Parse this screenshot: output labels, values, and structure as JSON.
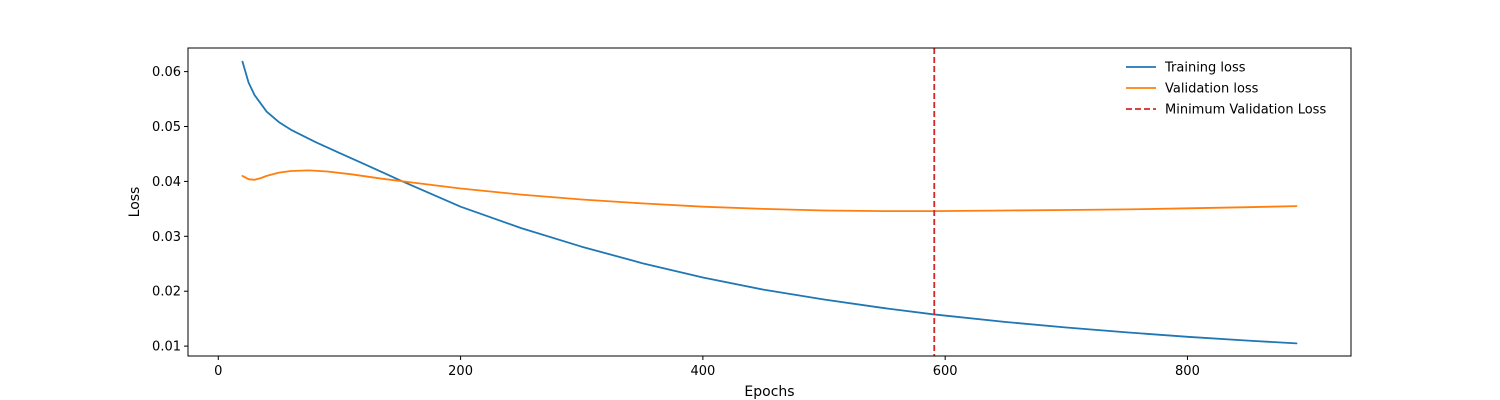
{
  "chart_data": {
    "type": "line",
    "title": "",
    "xlabel": "Epochs",
    "ylabel": "Loss",
    "xlim": [
      -25,
      935
    ],
    "ylim": [
      0.0082,
      0.0643
    ],
    "x_ticks": [
      0,
      200,
      400,
      600,
      800
    ],
    "x_tick_labels": [
      "0",
      "200",
      "400",
      "600",
      "800"
    ],
    "y_ticks": [
      0.01,
      0.02,
      0.03,
      0.04,
      0.05,
      0.06
    ],
    "y_tick_labels": [
      "0.01",
      "0.02",
      "0.03",
      "0.04",
      "0.05",
      "0.06"
    ],
    "grid": false,
    "legend_position": "top-right",
    "series": [
      {
        "name": "Training loss",
        "color": "#1f77b4",
        "style": "solid",
        "x": [
          20,
          25,
          30,
          40,
          50,
          60,
          80,
          100,
          120,
          150,
          200,
          250,
          300,
          350,
          400,
          450,
          500,
          550,
          590,
          650,
          700,
          750,
          800,
          850,
          890
        ],
        "y": [
          0.0618,
          0.058,
          0.0557,
          0.0527,
          0.0508,
          0.0494,
          0.0472,
          0.0452,
          0.0432,
          0.0402,
          0.0354,
          0.0315,
          0.0281,
          0.0251,
          0.0225,
          0.0203,
          0.0185,
          0.0169,
          0.0158,
          0.0144,
          0.0134,
          0.0125,
          0.0117,
          0.011,
          0.0105
        ]
      },
      {
        "name": "Validation loss",
        "color": "#ff7f0e",
        "style": "solid",
        "x": [
          20,
          25,
          30,
          35,
          40,
          50,
          60,
          75,
          90,
          110,
          135,
          160,
          200,
          250,
          300,
          350,
          400,
          450,
          500,
          550,
          590,
          650,
          700,
          750,
          800,
          850,
          890
        ],
        "y": [
          0.041,
          0.0404,
          0.0403,
          0.0406,
          0.041,
          0.0416,
          0.0419,
          0.042,
          0.0418,
          0.0413,
          0.0405,
          0.0398,
          0.0387,
          0.0376,
          0.0367,
          0.036,
          0.0354,
          0.035,
          0.0347,
          0.0346,
          0.0346,
          0.0347,
          0.0348,
          0.0349,
          0.0351,
          0.0353,
          0.0355
        ]
      }
    ],
    "reference_lines": [
      {
        "name": "Minimum Validation Loss",
        "orientation": "vertical",
        "x": 591,
        "color": "#d62728",
        "style": "dashed"
      }
    ]
  }
}
